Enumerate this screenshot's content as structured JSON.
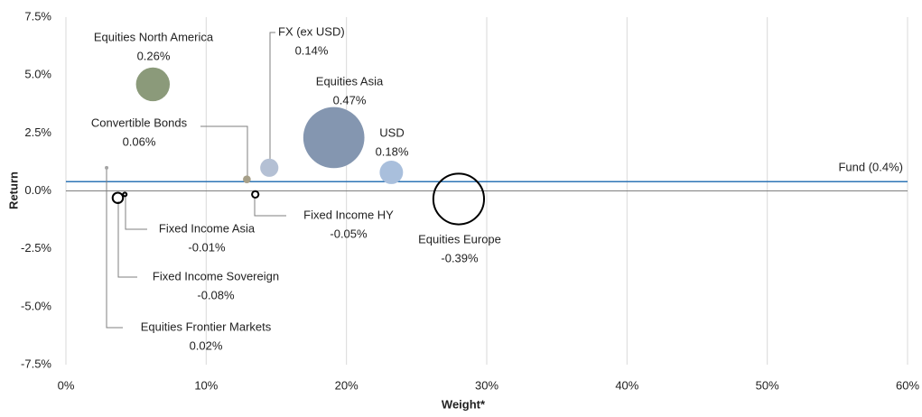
{
  "chart_data": {
    "type": "bubble",
    "xlabel": "Weight*",
    "ylabel": "Return",
    "xlim": [
      0,
      60
    ],
    "xticks": [
      {
        "value": 0,
        "label": "0%"
      },
      {
        "value": 10,
        "label": "10%"
      },
      {
        "value": 20,
        "label": "20%"
      },
      {
        "value": 30,
        "label": "30%"
      },
      {
        "value": 40,
        "label": "40%"
      },
      {
        "value": 50,
        "label": "50%"
      },
      {
        "value": 60,
        "label": "60%"
      }
    ],
    "ylim": [
      -7.5,
      7.5
    ],
    "yticks": [
      {
        "value": 7.5,
        "label": "7.5%"
      },
      {
        "value": 5,
        "label": "5.0%"
      },
      {
        "value": 2.5,
        "label": "2.5%"
      },
      {
        "value": 0,
        "label": "0.0%"
      },
      {
        "value": -2.5,
        "label": "-2.5%"
      },
      {
        "value": -5,
        "label": "-5.0%"
      },
      {
        "value": -7.5,
        "label": "-7.5%"
      }
    ],
    "grid": true,
    "series": [
      {
        "names": [
          "Equities North America",
          "FX (ex USD)",
          "Equities Asia",
          "USD",
          "Convertible Bonds",
          "Equities Frontier Markets",
          "Fixed Income Asia",
          "Fixed Income Sovereign",
          "Fixed Income HY",
          "Equities Europe"
        ],
        "x": [
          6.2,
          14.5,
          19.1,
          23.2,
          12.9,
          2.9,
          4.2,
          3.7,
          13.5,
          28.0
        ],
        "values": [
          4.6,
          1.0,
          2.3,
          0.8,
          0.5,
          1.0,
          -0.15,
          -0.3,
          -0.15,
          -0.35
        ],
        "sizes": [
          0.26,
          0.14,
          0.47,
          0.18,
          0.06,
          0.02,
          -0.01,
          -0.08,
          -0.05,
          -0.39
        ],
        "size_labels": [
          "0.26%",
          "0.14%",
          "0.47%",
          "0.18%",
          "0.06%",
          "0.02%",
          "-0.01%",
          "-0.08%",
          "-0.05%",
          "-0.39%"
        ],
        "colors": [
          "#8b9a7a",
          "#b4c0d4",
          "#8496b0",
          "#a9bfdc",
          "#a69f88",
          "#a5a5a5",
          "#000000",
          "#000000",
          "#000000",
          "#000000"
        ]
      }
    ],
    "reference_line": {
      "value": 0.4,
      "label": "Fund (0.4%)",
      "color": "#2e75b6"
    }
  }
}
